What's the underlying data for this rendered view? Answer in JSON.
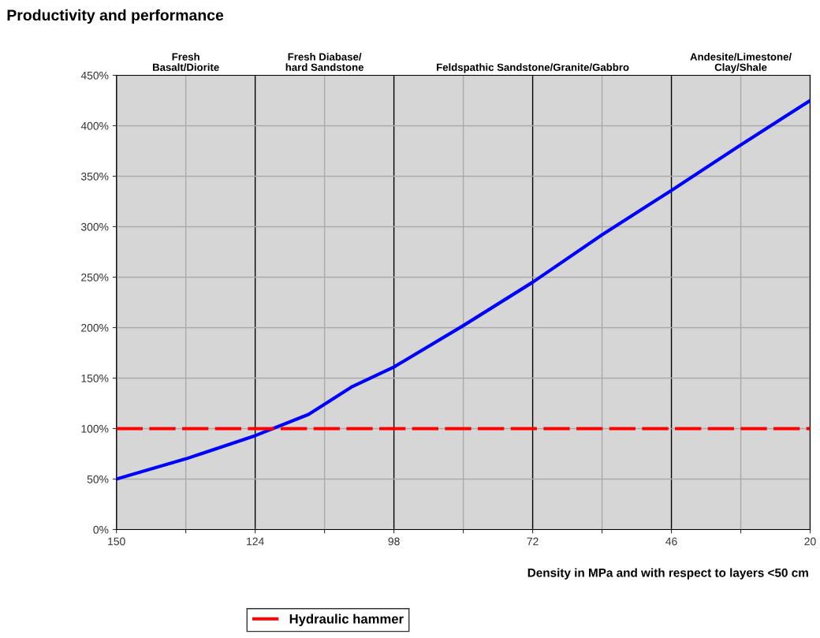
{
  "chart_data": {
    "type": "line",
    "title": "Productivity and performance",
    "xlabel": "Density in MPa and with respect to layers <50 cm",
    "xlim": [
      150,
      20
    ],
    "xticks": [
      150,
      {
        "value": 137,
        "label": null
      },
      124,
      {
        "value": 111,
        "label": null
      },
      98,
      {
        "value": 85,
        "label": null
      },
      72,
      {
        "value": 59,
        "label": null
      },
      46,
      {
        "value": 33,
        "label": null
      },
      20
    ],
    "ylim": [
      0,
      450
    ],
    "yticks": [
      {
        "value": 0,
        "label": "0%"
      },
      {
        "value": 50,
        "label": "50%"
      },
      {
        "value": 100,
        "label": "100%"
      },
      {
        "value": 150,
        "label": "150%"
      },
      {
        "value": 200,
        "label": "200%"
      },
      {
        "value": 250,
        "label": "250%"
      },
      {
        "value": 300,
        "label": "300%"
      },
      {
        "value": 350,
        "label": "350%"
      },
      {
        "value": 400,
        "label": "400%"
      },
      {
        "value": 450,
        "label": "450%"
      }
    ],
    "grid": true,
    "legend": "bottom",
    "bands": [
      {
        "axis": "x",
        "from": 150,
        "to": 124,
        "label": "Fresh\nBasalt/Diorite",
        "color": "#d6d6d6"
      },
      {
        "axis": "x",
        "from": 124,
        "to": 98,
        "label": "Fresh Diabase/\nhard Sandstone",
        "color": "#d6d6d6"
      },
      {
        "axis": "x",
        "from": 98,
        "to": 46,
        "label": "Feldspathic Sandstone/Granite/Gabbro",
        "color": "#d6d6d6"
      },
      {
        "axis": "x",
        "from": 46,
        "to": 20,
        "label": "Andesite/Limestone/\nClay/Shale",
        "color": "#d6d6d6"
      }
    ],
    "series": [
      {
        "color": "#0000ff",
        "line_style": "solid",
        "x": [
          150,
          137,
          124,
          114,
          106,
          98,
          85,
          72,
          59,
          46,
          33,
          20
        ],
        "values": [
          50,
          70,
          93,
          114,
          141,
          161,
          202,
          245,
          292,
          336,
          381,
          425
        ]
      },
      {
        "name": "Hydraulic hammer",
        "color": "#ff0000",
        "line_style": "dashed",
        "x": [
          150,
          20
        ],
        "values": [
          100,
          100
        ]
      }
    ]
  }
}
